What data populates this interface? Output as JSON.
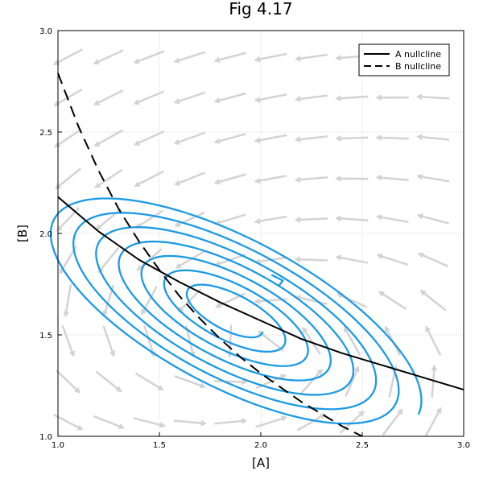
{
  "chart_data": {
    "type": "line",
    "title": "Fig 4.17",
    "xlabel": "[A]",
    "ylabel": "[B]",
    "xlim": [
      1.0,
      3.0
    ],
    "ylim": [
      1.0,
      3.0
    ],
    "x_ticks": [
      "1.0",
      "1.5",
      "2.0",
      "2.5",
      "3.0"
    ],
    "y_ticks": [
      "1.0",
      "1.5",
      "2.0",
      "2.5",
      "3.0"
    ],
    "grid": true,
    "legend_position": "top-right",
    "colors": {
      "nullcline": "#000000",
      "trajectory": "#1a9ae6",
      "field": "#d3d3d3"
    },
    "series": [
      {
        "name": "A nullcline",
        "style": "solid",
        "points": [
          [
            1.0,
            2.18
          ],
          [
            1.2,
            2.01
          ],
          [
            1.4,
            1.87
          ],
          [
            1.6,
            1.76
          ],
          [
            1.8,
            1.66
          ],
          [
            2.0,
            1.57
          ],
          [
            2.2,
            1.48
          ],
          [
            2.4,
            1.41
          ],
          [
            2.6,
            1.35
          ],
          [
            2.8,
            1.29
          ],
          [
            3.0,
            1.23
          ]
        ]
      },
      {
        "name": "B nullcline",
        "style": "dashed",
        "points": [
          [
            1.0,
            2.79
          ],
          [
            1.1,
            2.53
          ],
          [
            1.2,
            2.31
          ],
          [
            1.3,
            2.12
          ],
          [
            1.4,
            1.96
          ],
          [
            1.5,
            1.82
          ],
          [
            1.6,
            1.69
          ],
          [
            1.7,
            1.58
          ],
          [
            1.8,
            1.48
          ],
          [
            1.9,
            1.39
          ],
          [
            2.0,
            1.31
          ],
          [
            2.1,
            1.24
          ],
          [
            2.2,
            1.17
          ],
          [
            2.3,
            1.11
          ],
          [
            2.4,
            1.05
          ],
          [
            2.5,
            1.0
          ]
        ]
      }
    ],
    "trajectory": {
      "center": [
        1.85,
        1.6
      ],
      "angle_deg": -28,
      "a_start": 1.05,
      "b_start": 0.39,
      "a_end": 0.18,
      "b_end": 0.07,
      "turns": 7,
      "arrow_at": [
        2.1,
        1.78
      ]
    },
    "vector_field": {
      "x_values": [
        1.05,
        1.25,
        1.45,
        1.65,
        1.85,
        2.05,
        2.25,
        2.45,
        2.65,
        2.85
      ],
      "y_values": [
        1.07,
        1.27,
        1.47,
        1.67,
        1.87,
        2.07,
        2.27,
        2.47,
        2.67,
        2.87
      ]
    }
  }
}
